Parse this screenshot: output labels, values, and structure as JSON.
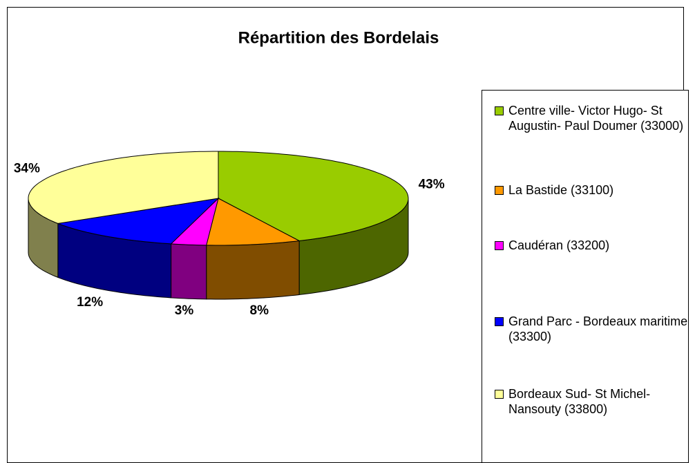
{
  "chart_data": {
    "type": "pie3d",
    "title": "Répartition des Bordelais",
    "categories": [
      "Centre ville- Victor Hugo- St Augustin- Paul Doumer (33000)",
      "La Bastide (33100)",
      "Caudéran (33200)",
      "Grand Parc - Bordeaux maritime (33300)",
      "Bordeaux Sud- St Michel- Nansouty (33800)"
    ],
    "values": [
      43,
      8,
      3,
      12,
      34
    ],
    "value_labels": [
      "43%",
      "8%",
      "3%",
      "12%",
      "34%"
    ],
    "colors": [
      "#99CC00",
      "#FF9900",
      "#FF00FF",
      "#0000FF",
      "#FFFF99"
    ],
    "legend": "right"
  }
}
